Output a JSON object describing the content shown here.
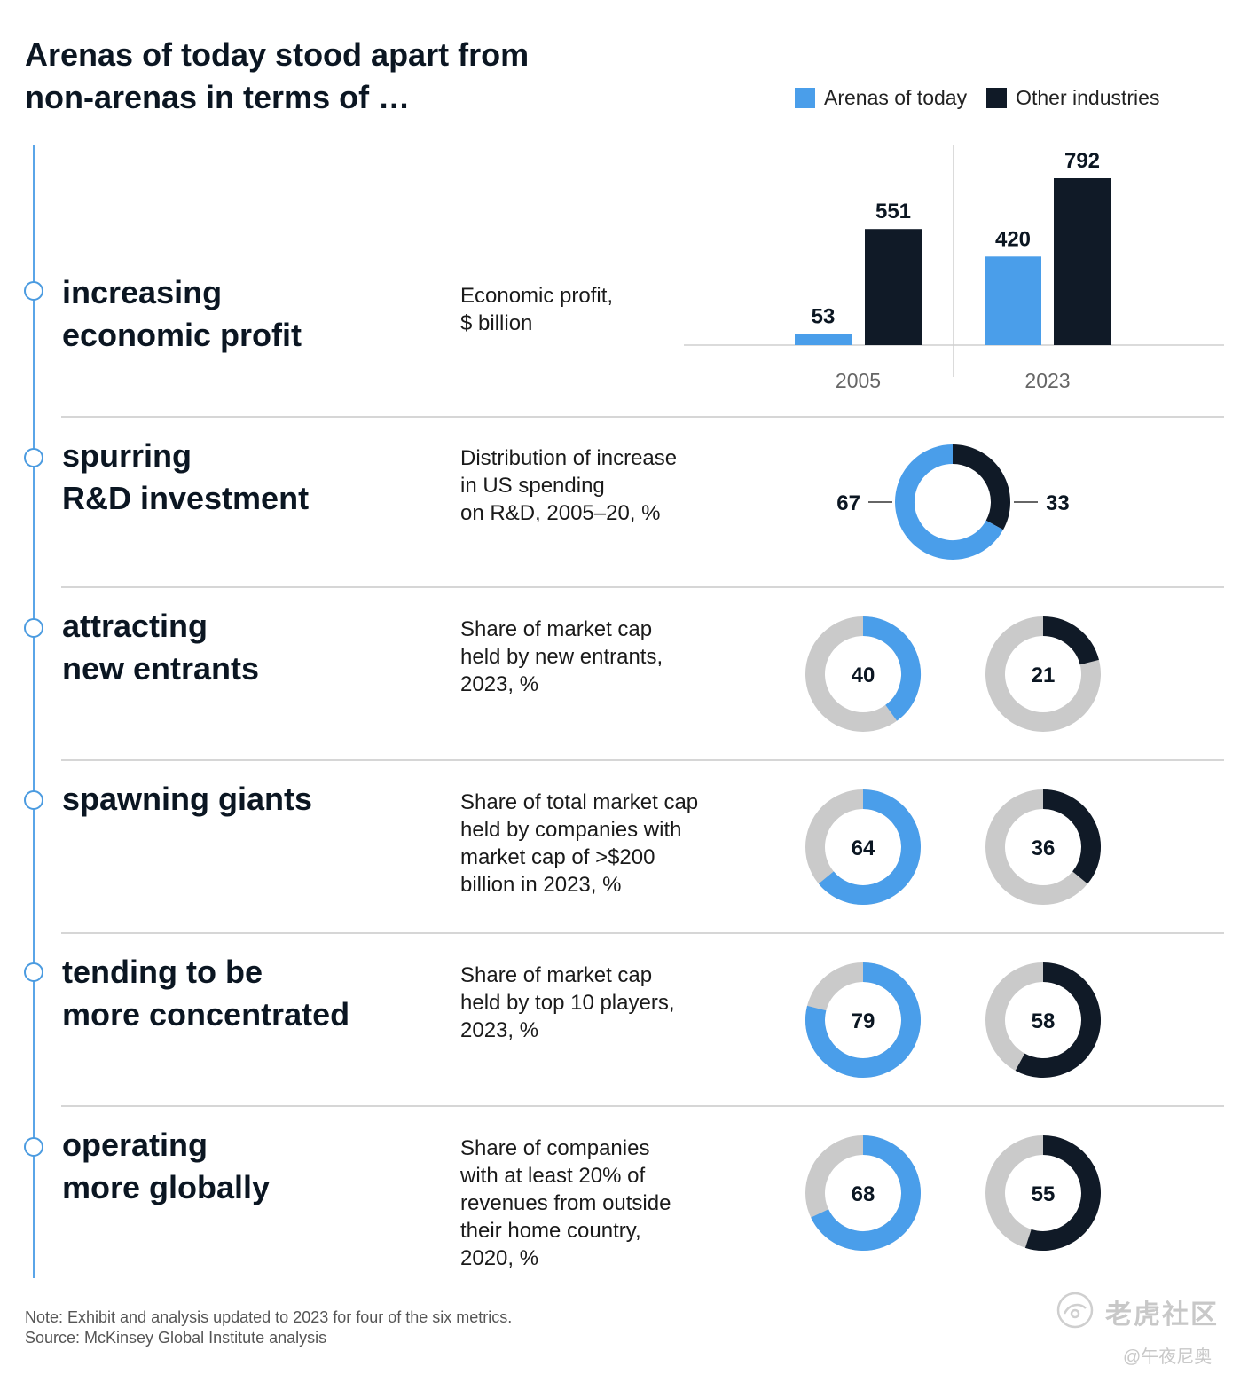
{
  "header": {
    "title_line1": "Arenas of today stood apart from",
    "title_line2": "non-arenas in terms of …"
  },
  "legend": [
    {
      "label": "Arenas of today",
      "color": "#4a9eea"
    },
    {
      "label": "Other industries",
      "color": "#101a27"
    }
  ],
  "rows": [
    {
      "title_line1": "increasing",
      "title_line2": "economic profit",
      "desc": [
        "Economic profit,",
        "$ billion"
      ]
    },
    {
      "title_line1": "spurring",
      "title_line2": "R&D investment",
      "desc": [
        "Distribution of increase",
        "in US spending",
        "on R&D, 2005–20, %"
      ]
    },
    {
      "title_line1": "attracting",
      "title_line2": "new entrants",
      "desc": [
        "Share of market cap",
        "held by new entrants,",
        "2023, %"
      ]
    },
    {
      "title_line1": "spawning giants",
      "title_line2": "",
      "desc": [
        "Share of total market cap",
        "held by companies with",
        "market cap of >$200",
        "billion in 2023, %"
      ]
    },
    {
      "title_line1": "tending to be",
      "title_line2": "more concentrated",
      "desc": [
        "Share of market cap",
        "held by top 10 players,",
        "2023, %"
      ]
    },
    {
      "title_line1": "operating",
      "title_line2": "more globally",
      "desc": [
        "Share of companies",
        "with at least 20% of",
        "revenues from outside",
        "their home country,",
        "2020, %"
      ]
    }
  ],
  "chart_data": [
    {
      "type": "bar",
      "categories": [
        "2005",
        "2023"
      ],
      "series": [
        {
          "name": "Arenas of today",
          "values": [
            53,
            420
          ]
        },
        {
          "name": "Other industries",
          "values": [
            551,
            792
          ]
        }
      ],
      "ylabel": "Economic profit, $ billion"
    },
    {
      "type": "pie",
      "title": "Distribution of increase in US spending on R&D, 2005–20, %",
      "slices": [
        {
          "name": "Arenas of today",
          "value": 67
        },
        {
          "name": "Other industries",
          "value": 33
        }
      ]
    },
    {
      "type": "pie",
      "title": "Share of market cap held by new entrants, 2023, %",
      "arenas": 40,
      "other": 21
    },
    {
      "type": "pie",
      "title": "Share of total market cap held by companies with market cap of >$200 billion in 2023, %",
      "arenas": 64,
      "other": 36
    },
    {
      "type": "pie",
      "title": "Share of market cap held by top 10 players, 2023, %",
      "arenas": 79,
      "other": 58
    },
    {
      "type": "pie",
      "title": "Share of companies with at least 20% of revenues from outside their home country, 2020, %",
      "arenas": 68,
      "other": 55
    }
  ],
  "colors": {
    "arenas": "#4a9eea",
    "other": "#101a27",
    "track": "#cacaca"
  },
  "footer": {
    "note": "Note: Exhibit and analysis updated to 2023 for four of the six metrics.",
    "source": "Source: McKinsey Global Institute analysis"
  },
  "watermark": {
    "main": "老虎社区",
    "sub": "@午夜尼奥"
  }
}
